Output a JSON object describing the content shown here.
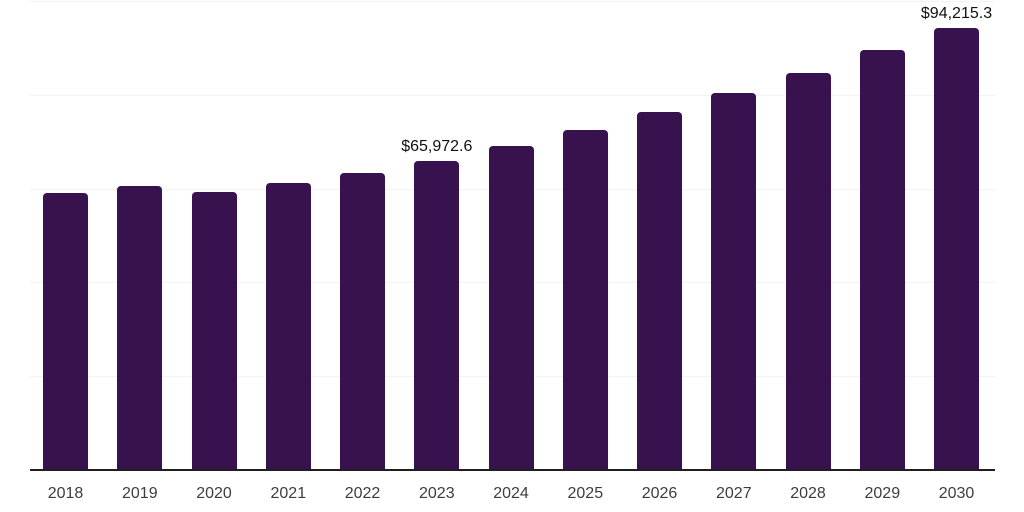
{
  "chart_data": {
    "type": "bar",
    "title": "",
    "xlabel": "",
    "ylabel": "",
    "categories": [
      "2018",
      "2019",
      "2020",
      "2021",
      "2022",
      "2023",
      "2024",
      "2025",
      "2026",
      "2027",
      "2028",
      "2029",
      "2030"
    ],
    "values": [
      59000,
      60600,
      59300,
      61100,
      63250,
      65972.6,
      69000,
      72600,
      76400,
      80500,
      84600,
      89600,
      94215.3
    ],
    "data_labels": [
      null,
      null,
      null,
      null,
      null,
      "$65,972.6",
      null,
      null,
      null,
      null,
      null,
      null,
      "$94,215.3"
    ],
    "ylim": [
      0,
      100000
    ],
    "gridline_interval": 20000,
    "grid": true,
    "legend": false,
    "colors": {
      "bar": "#38124F",
      "axis_line": "#1f1f1f",
      "gridline": "#f3f3f3",
      "tick_label": "#3d3d3d",
      "data_label": "#111111",
      "background": "#ffffff"
    }
  }
}
